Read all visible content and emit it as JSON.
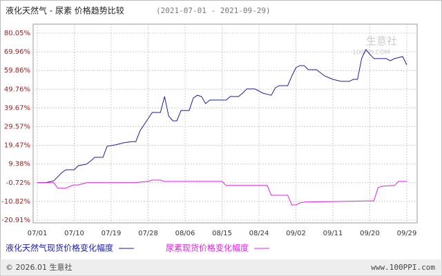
{
  "chart_data": {
    "type": "line",
    "title": "液化天然气 - 尿素 价格趋势比较",
    "subtitle": "(2021-07-01 - 2021-09-29)",
    "watermark": [
      "生意社",
      "100PPI.COM"
    ],
    "footer_left": "© 2026.01 生意社",
    "footer_right": "www.100PPI.com",
    "xticks": [
      "07/01",
      "07/10",
      "07/19",
      "07/28",
      "08/06",
      "08/15",
      "08/24",
      "09/02",
      "09/11",
      "09/20",
      "09/29"
    ],
    "ylim": [
      -20.91,
      80.05
    ],
    "yticks": [
      {
        "value": -20.91,
        "label": "-20.91%"
      },
      {
        "value": -10.82,
        "label": "-10.82%"
      },
      {
        "value": -0.72,
        "label": "-0.72%"
      },
      {
        "value": 9.38,
        "label": "9.38%"
      },
      {
        "value": 19.47,
        "label": "19.47%"
      },
      {
        "value": 29.57,
        "label": "29.57%"
      },
      {
        "value": 39.67,
        "label": "39.67%"
      },
      {
        "value": 49.76,
        "label": "49.76%"
      },
      {
        "value": 59.86,
        "label": "59.86%"
      },
      {
        "value": 69.96,
        "label": "69.96%"
      },
      {
        "value": 80.05,
        "label": "80.05%"
      }
    ],
    "grid": true,
    "series": [
      {
        "name": "液化天然气现货价格变化幅度",
        "color": "#1a1aa6",
        "x": [
          "07/01",
          "07/03",
          "07/05",
          "07/07",
          "07/08",
          "07/10",
          "07/11",
          "07/13",
          "07/14",
          "07/15",
          "07/17",
          "07/18",
          "07/20",
          "07/22",
          "07/24",
          "07/25",
          "07/26",
          "07/28",
          "07/29",
          "07/31",
          "08/01",
          "08/02",
          "08/03",
          "08/04",
          "08/05",
          "08/07",
          "08/08",
          "08/09",
          "08/10",
          "08/11",
          "08/12",
          "08/14",
          "08/16",
          "08/17",
          "08/19",
          "08/20",
          "08/21",
          "08/23",
          "08/25",
          "08/27",
          "08/28",
          "08/29",
          "08/31",
          "09/01",
          "09/02",
          "09/03",
          "09/04",
          "09/05",
          "09/07",
          "09/09",
          "09/11",
          "09/13",
          "09/15",
          "09/16",
          "09/17",
          "09/18",
          "09/19",
          "09/21",
          "09/24",
          "09/25",
          "09/26",
          "09/28",
          "09/29"
        ],
        "values": [
          -0.72,
          -0.72,
          0.3,
          4.8,
          6.3,
          6.3,
          8.5,
          9.3,
          11,
          13,
          13,
          19,
          19.7,
          20.8,
          21.5,
          21.5,
          27.2,
          33.9,
          37.2,
          37.2,
          45.8,
          35.3,
          32.7,
          32.7,
          38.3,
          38.3,
          45,
          46.5,
          45.8,
          42,
          43.9,
          43.9,
          43.9,
          45.8,
          45.8,
          47.6,
          49.9,
          49.9,
          47.6,
          46.5,
          50.6,
          51.7,
          51.7,
          56.9,
          61.4,
          62.5,
          62.5,
          60.3,
          60.3,
          56.9,
          55.1,
          54,
          54,
          55.1,
          55.1,
          66.3,
          71.1,
          66.3,
          66.3,
          65.1,
          66.3,
          67.4,
          62.9
        ]
      },
      {
        "name": "尿素现货价格变化幅度",
        "color": "#e020e0",
        "x": [
          "07/01",
          "07/05",
          "07/06",
          "07/08",
          "07/09",
          "07/10",
          "07/11",
          "07/13",
          "07/25",
          "07/26",
          "07/28",
          "07/29",
          "07/31",
          "08/01",
          "08/15",
          "08/16",
          "08/26",
          "08/27",
          "08/28",
          "08/31",
          "09/01",
          "09/02",
          "09/03",
          "09/04",
          "09/20",
          "09/21",
          "09/22",
          "09/23",
          "09/26",
          "09/27",
          "09/29"
        ],
        "values": [
          -0.72,
          -0.72,
          -3.7,
          -3.7,
          -2.6,
          -1.9,
          -1.9,
          -0.7,
          -0.7,
          -0.4,
          0,
          0.7,
          0.7,
          0,
          0,
          -2.2,
          -2.2,
          -7.5,
          -7.5,
          -7.5,
          -12.7,
          -12.7,
          -11.6,
          -11.2,
          -10.5,
          -10.5,
          -3.4,
          -2.6,
          -2.2,
          0,
          0
        ]
      }
    ]
  }
}
